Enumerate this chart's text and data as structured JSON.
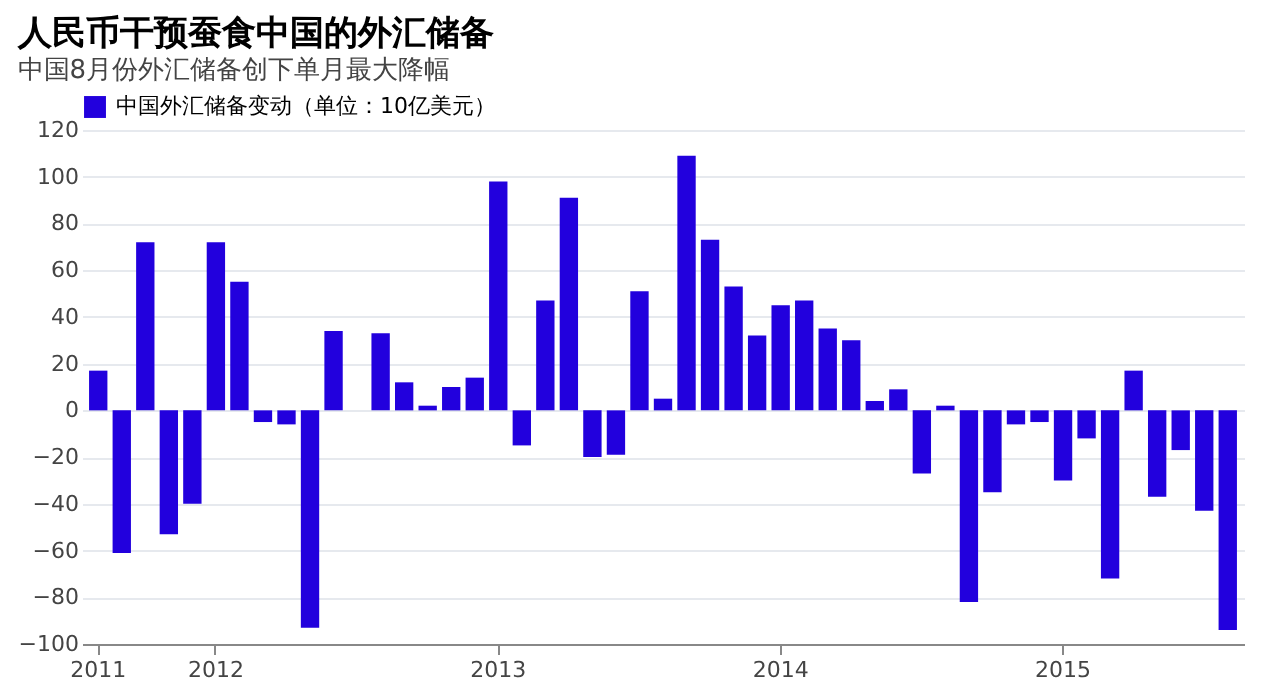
{
  "chart_data": {
    "type": "bar",
    "title": "人民币干预蚕食中国的外汇储备",
    "subtitle": "中国8月份外汇储备创下单月最大降幅",
    "categories": [
      "2011",
      null,
      null,
      null,
      null,
      "2012",
      null,
      null,
      null,
      null,
      null,
      null,
      null,
      null,
      null,
      null,
      null,
      "2013",
      null,
      null,
      null,
      null,
      null,
      null,
      null,
      null,
      null,
      null,
      null,
      "2014",
      null,
      null,
      null,
      null,
      null,
      null,
      null,
      null,
      null,
      null,
      null,
      "2015",
      null,
      null,
      null,
      null,
      null,
      null,
      null
    ],
    "series": [
      {
        "name": "中国外汇储备变动（单位：10亿美元）",
        "color": "#2200dd",
        "values": [
          17,
          -61,
          72,
          -53,
          -40,
          72,
          55,
          -5,
          -6,
          -93,
          34,
          null,
          33,
          12,
          2,
          10,
          14,
          98,
          -15,
          47,
          91,
          -20,
          -19,
          51,
          5,
          109,
          73,
          53,
          32,
          45,
          47,
          35,
          30,
          4,
          9,
          -27,
          2,
          -82,
          -35,
          -6,
          -5,
          -30,
          -12,
          -72,
          17,
          -37,
          -17,
          -43,
          -94
        ]
      }
    ],
    "ylim": [
      -100,
      120
    ],
    "yticks": [
      -100,
      -80,
      -60,
      -40,
      -20,
      0,
      20,
      40,
      60,
      80,
      100,
      120
    ],
    "grid": "y",
    "legend": "top left"
  }
}
